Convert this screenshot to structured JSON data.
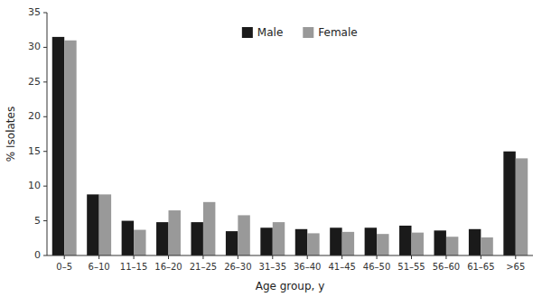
{
  "chart_data": {
    "type": "bar",
    "categories": [
      "0–5",
      "6–10",
      "11–15",
      "16–20",
      "21–25",
      "26–30",
      "31–35",
      "36–40",
      "41–45",
      "46–50",
      "51–55",
      "56–60",
      "61–65",
      ">65"
    ],
    "series": [
      {
        "name": "Male",
        "color": "#1a1a1a",
        "values": [
          31.5,
          8.8,
          5.0,
          4.8,
          4.8,
          3.5,
          4.0,
          3.8,
          4.0,
          4.0,
          4.3,
          3.6,
          3.8,
          15.0
        ]
      },
      {
        "name": "Female",
        "color": "#999999",
        "values": [
          31.0,
          8.8,
          3.7,
          6.5,
          7.7,
          5.8,
          4.8,
          3.2,
          3.4,
          3.1,
          3.3,
          2.7,
          2.6,
          14.0
        ]
      }
    ],
    "xlabel": "Age group, y",
    "ylabel": "% Isolates",
    "ylim": [
      0,
      35
    ],
    "yticks": [
      0,
      5,
      10,
      15,
      20,
      25,
      30,
      35
    ],
    "legend": "top",
    "grid": false
  }
}
